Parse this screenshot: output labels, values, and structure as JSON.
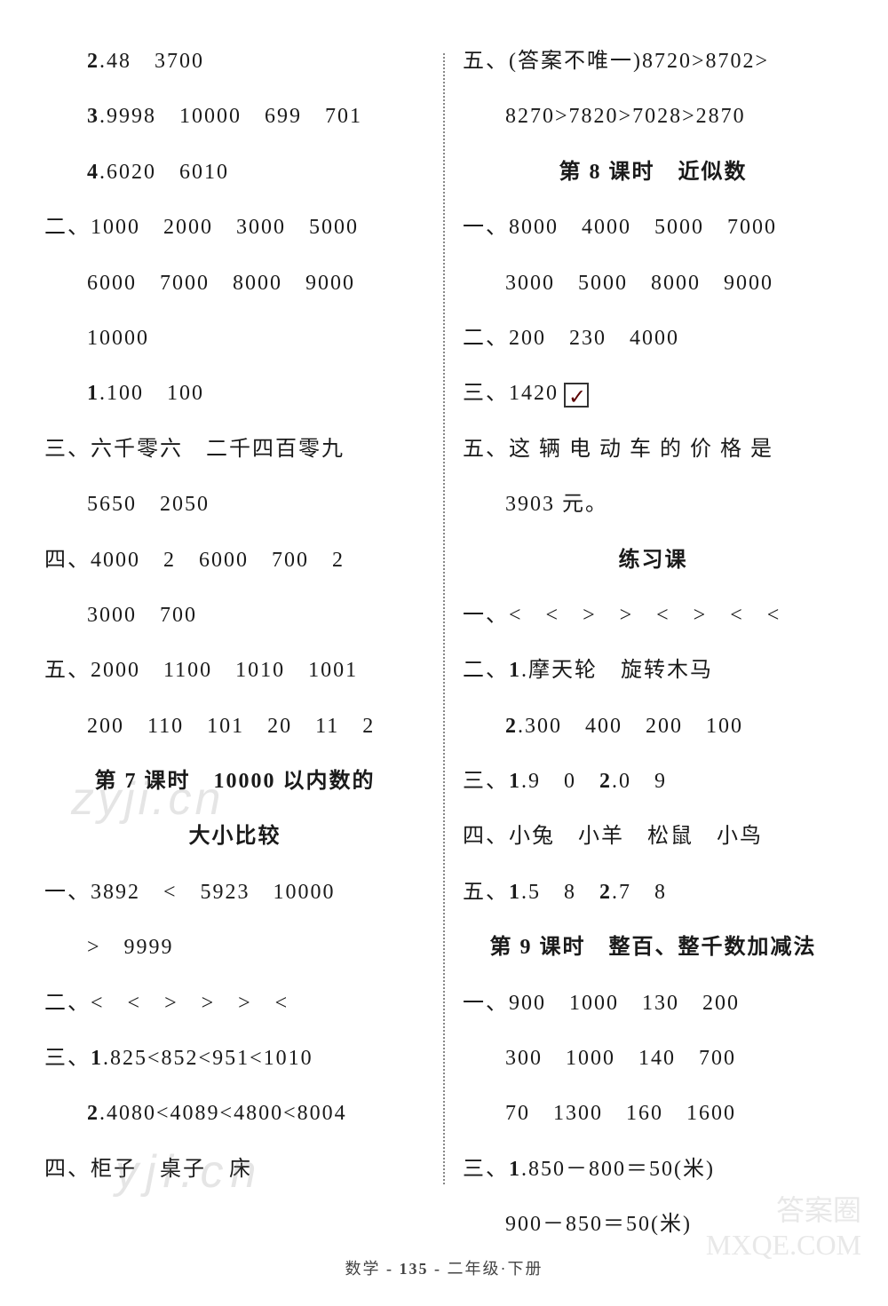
{
  "left": {
    "l1": "2.48　3700",
    "l2": "3.9998　10000　699　701",
    "l3": "4.6020　6010",
    "l4": "二、1000　2000　3000　5000",
    "l5": "6000　7000　8000　9000",
    "l6": "10000",
    "l7": "1.100　100",
    "l8": "三、六千零六　二千四百零九",
    "l9": "5650　2050",
    "l10": "四、4000　2　6000　700　2",
    "l11": "3000　700",
    "l12": "五、2000　1100　1010　1001",
    "l13": "200　110　101　20　11　2",
    "title1": "第 7 课时　10000 以内数的",
    "title1b": "大小比较",
    "l14": "一、3892　<　5923　10000",
    "l15": ">　9999",
    "l16": "二、<　<　>　>　>　<",
    "l17": "三、1.825<852<951<1010",
    "l18": "2.4080<4089<4800<8004",
    "l19": "四、柜子　桌子　床"
  },
  "right": {
    "r1": "五、(答案不唯一)8720>8702>",
    "r2": "8270>7820>7028>2870",
    "title2": "第 8 课时　近似数",
    "r3": "一、8000　4000　5000　7000",
    "r4": "3000　5000　8000　9000",
    "r5": "二、200　230　4000",
    "r6": "三、1420",
    "r7a": "五、这 辆 电 动 车 的 价 格 是",
    "r7b": "3903 元。",
    "title3": "练习课",
    "r8": "一、<　<　>　>　<　>　<　<",
    "r9": "二、1.摩天轮　旋转木马",
    "r10": "2.300　400　200　100",
    "r11": "三、1.9　0　2.0　9",
    "r12": "四、小兔　小羊　松鼠　小鸟",
    "r13": "五、1.5　8　2.7　8",
    "title4": "第 9 课时　整百、整千数加减法",
    "r14": "一、900　1000　130　200",
    "r15": "300　1000　140　700",
    "r16": "70　1300　160　1600",
    "r17": "三、1.850－800＝50(米)",
    "r18": "900－850＝50(米)"
  },
  "footer": {
    "subject": "数学",
    "page": "- 135 -",
    "grade": "二年级·下册"
  },
  "watermarks": {
    "w1": "zyji.cn",
    "w2": "yji.cn",
    "w3a": "答案圈",
    "w3b": "MXQE.COM"
  },
  "style": {
    "bg": "#ffffff",
    "text_color": "#1a1a1a",
    "fontsize": 24,
    "line_spacing": 24,
    "indent": 48,
    "divider_color": "#888"
  }
}
